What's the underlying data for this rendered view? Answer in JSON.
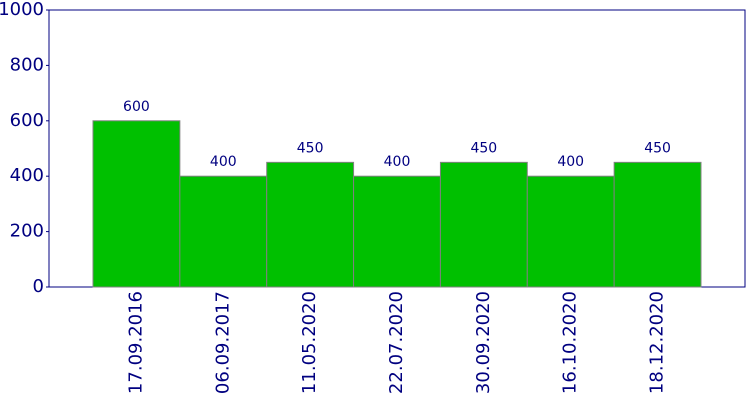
{
  "chart_data": {
    "type": "bar",
    "categories": [
      "17.09.2016",
      "06.09.2017",
      "11.05.2020",
      "22.07.2020",
      "30.09.2020",
      "16.10.2020",
      "18.12.2020"
    ],
    "values": [
      600,
      400,
      450,
      400,
      450,
      400,
      450
    ],
    "color": "#00c000",
    "ylim": [
      0,
      1000
    ],
    "yticks": [
      0,
      200,
      400,
      600,
      800,
      1000
    ],
    "grid": false
  }
}
